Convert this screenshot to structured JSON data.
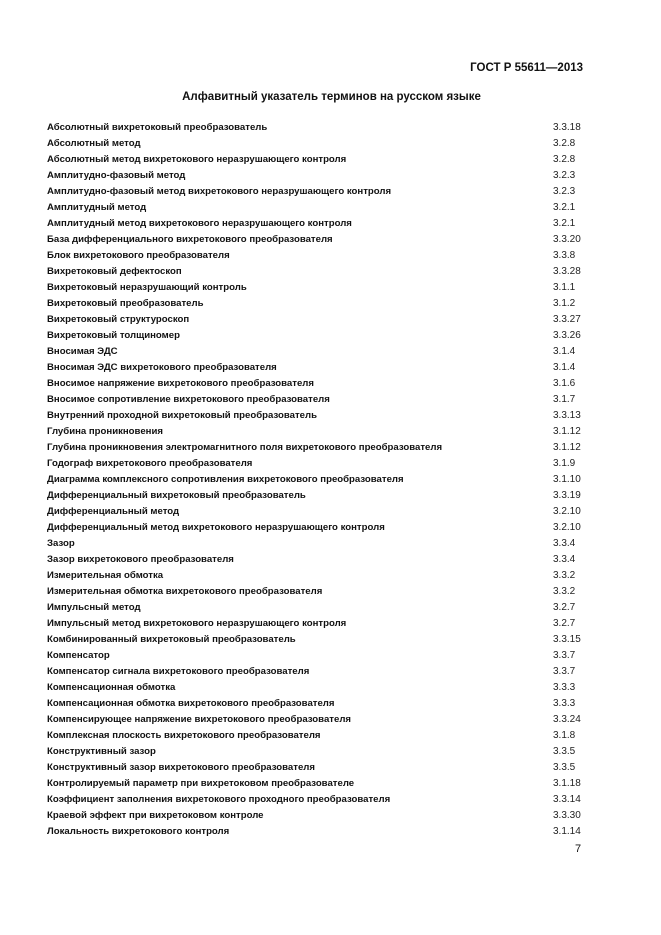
{
  "header": {
    "standard": "ГОСТ Р 55611—2013"
  },
  "title": "Алфавитный указатель терминов на русском языке",
  "entries": [
    {
      "term": "Абсолютный вихретоковый преобразователь",
      "ref": "3.3.18"
    },
    {
      "term": "Абсолютный метод",
      "ref": "3.2.8"
    },
    {
      "term": "Абсолютный метод вихретокового неразрушающего контроля",
      "ref": "3.2.8"
    },
    {
      "term": "Амплитудно-фазовый метод",
      "ref": "3.2.3"
    },
    {
      "term": "Амплитудно-фазовый метод вихретокового неразрушающего контроля",
      "ref": "3.2.3"
    },
    {
      "term": "Амплитудный метод",
      "ref": "3.2.1"
    },
    {
      "term": "Амплитудный метод вихретокового неразрушающего контроля",
      "ref": "3.2.1"
    },
    {
      "term": "База дифференциального вихретокового преобразователя",
      "ref": "3.3.20"
    },
    {
      "term": "Блок вихретокового преобразователя",
      "ref": "3.3.8"
    },
    {
      "term": "Вихретоковый дефектоскоп",
      "ref": "3.3.28"
    },
    {
      "term": "Вихретоковый неразрушающий контроль",
      "ref": "3.1.1"
    },
    {
      "term": "Вихретоковый преобразователь",
      "ref": "3.1.2"
    },
    {
      "term": "Вихретоковый структуроскоп",
      "ref": "3.3.27"
    },
    {
      "term": "Вихретоковый толщиномер",
      "ref": "3.3.26"
    },
    {
      "term": "Вносимая ЭДС",
      "ref": "3.1.4"
    },
    {
      "term": "Вносимая ЭДС вихретокового преобразователя",
      "ref": "3.1.4"
    },
    {
      "term": "Вносимое напряжение вихретокового преобразователя",
      "ref": "3.1.6"
    },
    {
      "term": "Вносимое сопротивление вихретокового преобразователя",
      "ref": "3.1.7"
    },
    {
      "term": "Внутренний проходной вихретоковый преобразователь",
      "ref": "3.3.13"
    },
    {
      "term": "Глубина проникновения",
      "ref": "3.1.12"
    },
    {
      "term": "Глубина проникновения электромагнитного поля вихретокового преобразователя",
      "ref": "3.1.12"
    },
    {
      "term": "Годограф вихретокового преобразователя",
      "ref": "3.1.9"
    },
    {
      "term": "Диаграмма комплексного сопротивления вихретокового преобразователя",
      "ref": "3.1.10"
    },
    {
      "term": "Дифференциальный вихретоковый преобразователь",
      "ref": "3.3.19"
    },
    {
      "term": "Дифференциальный метод",
      "ref": "3.2.10"
    },
    {
      "term": "Дифференциальный метод вихретокового неразрушающего контроля",
      "ref": "3.2.10"
    },
    {
      "term": "Зазор",
      "ref": "3.3.4"
    },
    {
      "term": "Зазор вихретокового преобразователя",
      "ref": "3.3.4"
    },
    {
      "term": "Измерительная обмотка",
      "ref": "3.3.2"
    },
    {
      "term": "Измерительная обмотка вихретокового преобразователя",
      "ref": "3.3.2"
    },
    {
      "term": "Импульсный метод",
      "ref": "3.2.7"
    },
    {
      "term": "Импульсный метод вихретокового неразрушающего контроля",
      "ref": "3.2.7"
    },
    {
      "term": "Комбинированный вихретоковый преобразователь",
      "ref": "3.3.15"
    },
    {
      "term": "Компенсатор",
      "ref": "3.3.7"
    },
    {
      "term": "Компенсатор сигнала вихретокового преобразователя",
      "ref": "3.3.7"
    },
    {
      "term": "Компенсационная обмотка",
      "ref": "3.3.3"
    },
    {
      "term": "Компенсационная обмотка вихретокового преобразователя",
      "ref": "3.3.3"
    },
    {
      "term": "Компенсирующее напряжение вихретокового преобразователя",
      "ref": "3.3.24"
    },
    {
      "term": "Комплексная плоскость вихретокового преобразователя",
      "ref": "3.1.8"
    },
    {
      "term": "Конструктивный зазор",
      "ref": "3.3.5"
    },
    {
      "term": "Конструктивный зазор вихретокового преобразователя",
      "ref": "3.3.5"
    },
    {
      "term": "Контролируемый параметр при вихретоковом преобразователе",
      "ref": "3.1.18"
    },
    {
      "term": "Коэффициент заполнения вихретокового проходного преобразователя",
      "ref": "3.3.14"
    },
    {
      "term": "Краевой эффект при вихретоковом контроле",
      "ref": "3.3.30"
    },
    {
      "term": "Локальность вихретокового контроля",
      "ref": "3.1.14"
    }
  ],
  "page_number": "7"
}
